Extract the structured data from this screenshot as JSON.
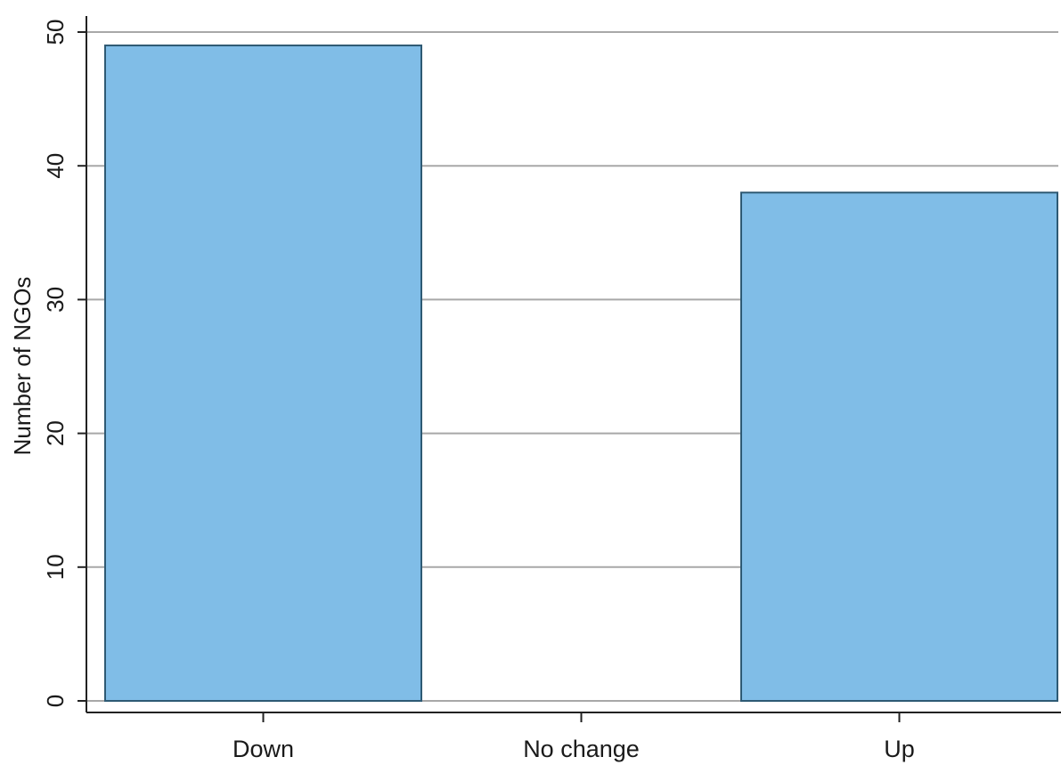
{
  "chart_data": {
    "type": "bar",
    "categories": [
      "Down",
      "No change",
      "Up"
    ],
    "values": [
      49,
      0,
      38
    ],
    "ylabel": "Number of NGOs",
    "xlabel": "",
    "ylim": [
      0,
      50
    ],
    "yticks": [
      0,
      10,
      20,
      30,
      40,
      50
    ],
    "grid": true,
    "bar_color": "#80bde7",
    "bar_edge_color": "#2e5a74"
  }
}
